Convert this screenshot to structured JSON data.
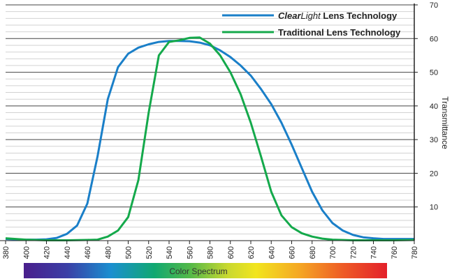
{
  "chart_data": {
    "type": "line",
    "title": "",
    "xlabel": "",
    "ylabel": "Transmittance",
    "xlim": [
      380,
      780
    ],
    "ylim": [
      0,
      70
    ],
    "x_ticks": [
      380,
      400,
      420,
      440,
      460,
      480,
      500,
      520,
      540,
      560,
      580,
      600,
      620,
      640,
      660,
      680,
      700,
      720,
      740,
      760,
      780
    ],
    "y_ticks": [
      10,
      20,
      30,
      40,
      50,
      60,
      70
    ],
    "grid": true,
    "legend_position": "top-right",
    "color_bar_label": "Color Spectrum",
    "series": [
      {
        "name_italic": "Clear",
        "name_italic_2": "Light",
        "name_rest": " Lens Technology",
        "color": "#1a7fc8",
        "points": [
          [
            380,
            0.5
          ],
          [
            390,
            0.4
          ],
          [
            400,
            0.3
          ],
          [
            410,
            0.3
          ],
          [
            420,
            0.4
          ],
          [
            430,
            0.8
          ],
          [
            440,
            2
          ],
          [
            450,
            4.5
          ],
          [
            460,
            11
          ],
          [
            470,
            25
          ],
          [
            480,
            42
          ],
          [
            490,
            51.5
          ],
          [
            500,
            55.5
          ],
          [
            510,
            57.3
          ],
          [
            520,
            58.3
          ],
          [
            530,
            59
          ],
          [
            540,
            59.3
          ],
          [
            550,
            59.3
          ],
          [
            560,
            59.2
          ],
          [
            570,
            58.8
          ],
          [
            580,
            58
          ],
          [
            590,
            56.5
          ],
          [
            600,
            54.5
          ],
          [
            610,
            52
          ],
          [
            620,
            49
          ],
          [
            630,
            45
          ],
          [
            640,
            40.5
          ],
          [
            650,
            35
          ],
          [
            660,
            28.5
          ],
          [
            670,
            21.5
          ],
          [
            680,
            14.5
          ],
          [
            690,
            9
          ],
          [
            700,
            5.2
          ],
          [
            710,
            3
          ],
          [
            720,
            1.7
          ],
          [
            730,
            1
          ],
          [
            740,
            0.7
          ],
          [
            750,
            0.5
          ],
          [
            760,
            0.5
          ],
          [
            770,
            0.5
          ],
          [
            780,
            0.5
          ]
        ]
      },
      {
        "name": "Traditional Lens Technology",
        "color": "#14a94b",
        "points": [
          [
            380,
            0.7
          ],
          [
            400,
            0.3
          ],
          [
            420,
            0.1
          ],
          [
            440,
            0.1
          ],
          [
            460,
            0.2
          ],
          [
            470,
            0.3
          ],
          [
            480,
            1.2
          ],
          [
            490,
            3
          ],
          [
            500,
            7
          ],
          [
            510,
            18
          ],
          [
            520,
            38
          ],
          [
            530,
            55
          ],
          [
            540,
            59
          ],
          [
            550,
            59.5
          ],
          [
            560,
            60.2
          ],
          [
            570,
            60.3
          ],
          [
            580,
            58.5
          ],
          [
            590,
            55
          ],
          [
            600,
            50
          ],
          [
            610,
            43.5
          ],
          [
            620,
            35
          ],
          [
            630,
            25
          ],
          [
            640,
            14.5
          ],
          [
            650,
            7.5
          ],
          [
            660,
            4
          ],
          [
            670,
            2.2
          ],
          [
            680,
            1.2
          ],
          [
            690,
            0.6
          ],
          [
            700,
            0.3
          ],
          [
            720,
            0.1
          ],
          [
            740,
            0.1
          ],
          [
            760,
            0.1
          ],
          [
            780,
            0.2
          ]
        ]
      }
    ]
  }
}
